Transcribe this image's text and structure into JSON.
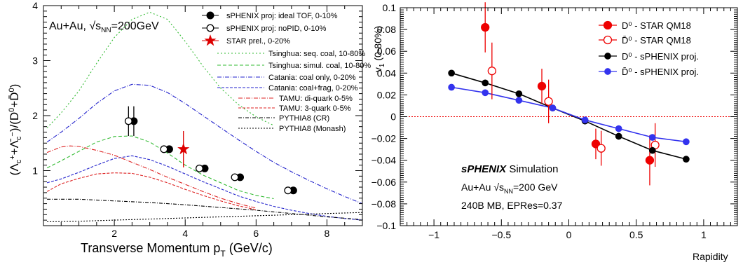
{
  "chart_data": [
    {
      "type": "scatter",
      "title": "",
      "xlabel": "Transverse Momentum p",
      "xlabel_sub": "T",
      "xlabel_unit": "(GeV/c)",
      "ylabel_text": "(Λc⁺+Λ̄c⁻)/(D⁰+D̄⁰)",
      "xlim": [
        0,
        9
      ],
      "ylim": [
        0,
        4
      ],
      "xticks": [
        "2",
        "4",
        "6",
        "8"
      ],
      "yticks": [
        "1",
        "2",
        "3",
        "4"
      ],
      "annotation": "Au+Au, √sNN=200GeV",
      "points": [
        {
          "name": "sPHENIX proj: ideal TOF, 0-10%",
          "color": "#000000",
          "fill": "#000000",
          "marker": "circle",
          "x": [
            2.55,
            3.55,
            4.55,
            5.55,
            7.05
          ],
          "y": [
            1.9,
            1.39,
            1.04,
            0.88,
            0.64
          ],
          "err": [
            0.27,
            0,
            0,
            0,
            0
          ]
        },
        {
          "name": "sPHENIX proj: noPID, 0-10%",
          "color": "#000000",
          "fill": "none",
          "marker": "circle",
          "x": [
            2.4,
            3.4,
            4.4,
            5.4,
            6.9
          ],
          "y": [
            1.9,
            1.39,
            1.04,
            0.88,
            0.64
          ],
          "err": [
            0.27,
            0,
            0,
            0,
            0
          ]
        },
        {
          "name": "STAR prel., 0-20%",
          "color": "#dd0000",
          "fill": "#dd0000",
          "marker": "star",
          "x": [
            3.95
          ],
          "y": [
            1.39
          ],
          "err": [
            0.33
          ]
        }
      ],
      "curves": [
        {
          "name": "Tsinghua: seq. coal, 10-80%",
          "color": "#33bb33",
          "dash": "2,3",
          "x": [
            0.1,
            0.5,
            1.0,
            1.5,
            2.0,
            2.5,
            3.0,
            3.5,
            4.0,
            4.5,
            5.0,
            5.5,
            6.0,
            6.5
          ],
          "y": [
            1.78,
            2.05,
            2.45,
            2.95,
            3.42,
            3.75,
            3.88,
            3.75,
            3.35,
            2.9,
            2.5,
            2.2,
            1.98,
            1.82
          ]
        },
        {
          "name": "Tsinghua: simul. coal, 10-80%",
          "color": "#33bb33",
          "dash": "5,3",
          "x": [
            0.1,
            0.5,
            1.0,
            1.5,
            2.0,
            2.5,
            3.0,
            3.5,
            4.0,
            4.5,
            5.0,
            5.5,
            6.0,
            6.5
          ],
          "y": [
            1.05,
            1.18,
            1.35,
            1.52,
            1.62,
            1.63,
            1.52,
            1.32,
            1.1,
            0.92,
            0.78,
            0.64,
            0.55,
            0.49
          ]
        },
        {
          "name": "Catania: coal only, 0-20%",
          "color": "#2222cc",
          "dash": "6,2,1,2",
          "x": [
            0.1,
            0.5,
            1.0,
            1.5,
            2.0,
            2.5,
            3.0,
            3.5,
            4.0,
            4.5,
            5.0,
            5.5,
            6.0,
            6.5,
            7.0,
            7.5,
            8.0,
            8.5,
            9.0
          ],
          "y": [
            1.52,
            1.7,
            1.95,
            2.22,
            2.45,
            2.57,
            2.55,
            2.42,
            2.22,
            2.0,
            1.78,
            1.56,
            1.35,
            1.15,
            0.98,
            0.82,
            0.67,
            0.53,
            0.4
          ]
        },
        {
          "name": "Catania: coal+frag, 0-20%",
          "color": "#2222cc",
          "dash": "4,2",
          "x": [
            0.1,
            0.5,
            1.0,
            1.5,
            2.0,
            2.5,
            3.0,
            3.5,
            4.0,
            4.5,
            5.0,
            5.5,
            6.0,
            6.5,
            7.0,
            7.5,
            8.0,
            8.5,
            9.0
          ],
          "y": [
            0.78,
            0.85,
            0.97,
            1.1,
            1.22,
            1.27,
            1.2,
            1.08,
            0.94,
            0.8,
            0.67,
            0.54,
            0.44,
            0.35,
            0.28,
            0.22,
            0.17,
            0.13,
            0.1
          ]
        },
        {
          "name": "TAMU: di-quark 0-5%",
          "color": "#dd2222",
          "dash": "6,2,1,2",
          "x": [
            0.1,
            0.5,
            0.75,
            1.0,
            1.5,
            2.0,
            2.5,
            3.0,
            3.5,
            4.0,
            4.5,
            5.0,
            5.5,
            6.0
          ],
          "y": [
            1.33,
            1.43,
            1.45,
            1.44,
            1.37,
            1.28,
            1.15,
            1.02,
            0.88,
            0.75,
            0.62,
            0.5,
            0.4,
            0.32
          ]
        },
        {
          "name": "TAMU: 3-quark 0-5%",
          "color": "#dd2222",
          "dash": "4,2",
          "x": [
            0.1,
            0.5,
            1.0,
            1.5,
            2.0,
            2.5,
            3.0,
            3.5,
            4.0,
            4.5,
            5.0,
            5.5,
            6.0
          ],
          "y": [
            0.62,
            0.76,
            0.86,
            0.94,
            0.96,
            0.95,
            0.88,
            0.78,
            0.66,
            0.55,
            0.45,
            0.36,
            0.29
          ]
        },
        {
          "name": "PYTHIA8 (CR)",
          "color": "#000000",
          "dash": "5,2,1,2",
          "x": [
            0.1,
            1.0,
            2.0,
            3.0,
            4.0,
            5.0,
            6.0,
            7.0,
            8.0,
            9.0
          ],
          "y": [
            0.48,
            0.48,
            0.45,
            0.42,
            0.38,
            0.33,
            0.28,
            0.22,
            0.16,
            0.11
          ]
        },
        {
          "name": "PYTHIA8 (Monash)",
          "color": "#000000",
          "dash": "2,2",
          "x": [
            0.1,
            1.0,
            2.0,
            3.0,
            4.0,
            5.0,
            6.0,
            7.0,
            8.0,
            9.0
          ],
          "y": [
            0.07,
            0.08,
            0.1,
            0.12,
            0.14,
            0.16,
            0.18,
            0.2,
            0.22,
            0.24
          ]
        }
      ]
    },
    {
      "type": "scatter",
      "title": "",
      "xlabel": "Rapidity",
      "ylabel_text": "v1 (0-80%)",
      "xlim": [
        -1.25,
        1.25
      ],
      "ylim": [
        -0.1,
        0.1
      ],
      "xticks": [
        "−1",
        "−0.5",
        "0",
        "0.5",
        "1"
      ],
      "yticks": [
        "−0.1",
        "−0.08",
        "−0.06",
        "−0.04",
        "−0.02",
        "0",
        "0.02",
        "0.04",
        "0.06",
        "0.08",
        "0.1"
      ],
      "annotation_bold": "sPHENIX",
      "annotation_rest": " Simulation",
      "annotation_line2": "Au+Au √sNN=200 GeV",
      "annotation_line3": "240B MB, EPRes=0.37",
      "zero_line_color": "#ee0000",
      "series": [
        {
          "name": "D⁰ - STAR QM18",
          "color": "#ee0000",
          "fill": "#ee0000",
          "x": [
            -0.62,
            -0.2,
            0.2,
            0.6
          ],
          "y": [
            0.082,
            0.028,
            -0.025,
            -0.04
          ],
          "err": [
            0.023,
            0.016,
            0.014,
            0.023
          ]
        },
        {
          "name": "D̄⁰ - STAR QM18",
          "color": "#ee0000",
          "fill": "none",
          "x": [
            -0.57,
            -0.15,
            0.24,
            0.64
          ],
          "y": [
            0.042,
            0.014,
            -0.029,
            -0.026
          ],
          "err": [
            0.026,
            0.02,
            0.016,
            0.02
          ]
        },
        {
          "name": "D⁰ - sPHENIX proj.",
          "color": "#000000",
          "fill": "#000000",
          "x": [
            -0.87,
            -0.62,
            -0.37,
            -0.12,
            0.12,
            0.37,
            0.62,
            0.87
          ],
          "y": [
            0.04,
            0.031,
            0.021,
            0.008,
            -0.004,
            -0.018,
            -0.031,
            -0.039
          ],
          "err": [
            0.002,
            0.002,
            0.002,
            0.002,
            0.002,
            0.002,
            0.002,
            0.002
          ]
        },
        {
          "name": "D̄⁰ - sPHENIX proj.",
          "color": "#3333ee",
          "fill": "#3333ee",
          "x": [
            -0.87,
            -0.62,
            -0.37,
            -0.12,
            0.12,
            0.37,
            0.62,
            0.87
          ],
          "y": [
            0.027,
            0.022,
            0.015,
            0.008,
            -0.003,
            -0.011,
            -0.019,
            -0.023
          ],
          "err": [
            0.002,
            0.002,
            0.002,
            0.002,
            0.002,
            0.002,
            0.002,
            0.002
          ]
        }
      ]
    }
  ]
}
